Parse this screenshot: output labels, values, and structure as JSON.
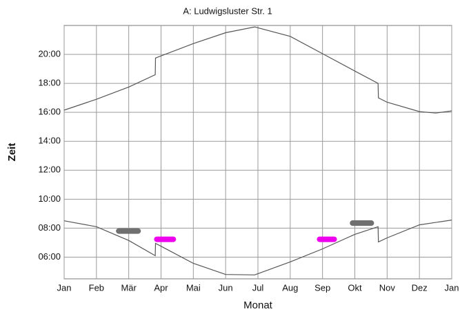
{
  "chart_data": {
    "type": "line",
    "title": "A: Ludwigsluster Str. 1",
    "xlabel": "Monat",
    "ylabel": "Zeit",
    "xlim": [
      0,
      12
    ],
    "xticks": [
      {
        "value": 0,
        "label": "Jan"
      },
      {
        "value": 1,
        "label": "Feb"
      },
      {
        "value": 2,
        "label": "Mär"
      },
      {
        "value": 3,
        "label": "Apr"
      },
      {
        "value": 4,
        "label": "Mai"
      },
      {
        "value": 5,
        "label": "Jun"
      },
      {
        "value": 6,
        "label": "Jul"
      },
      {
        "value": 7,
        "label": "Aug"
      },
      {
        "value": 8,
        "label": "Sep"
      },
      {
        "value": 9,
        "label": "Okt"
      },
      {
        "value": 10,
        "label": "Nov"
      },
      {
        "value": 11,
        "label": "Dez"
      },
      {
        "value": 12,
        "label": "Jan"
      }
    ],
    "ylim": [
      4.5,
      22
    ],
    "yticks": [
      {
        "value": 6,
        "label": "06:00"
      },
      {
        "value": 8,
        "label": "08:00"
      },
      {
        "value": 10,
        "label": "10:00"
      },
      {
        "value": 12,
        "label": "12:00"
      },
      {
        "value": 14,
        "label": "14:00"
      },
      {
        "value": 16,
        "label": "16:00"
      },
      {
        "value": 18,
        "label": "18:00"
      },
      {
        "value": 20,
        "label": "20:00"
      }
    ],
    "grid": true,
    "series": [
      {
        "color": "#555555",
        "x": [
          0,
          1,
          2,
          2.82,
          2.83,
          3,
          4,
          5,
          5.9,
          7,
          8,
          9,
          9.72,
          9.73,
          10,
          11,
          11.5,
          12
        ],
        "values": [
          16.15,
          16.9,
          17.75,
          18.6,
          19.75,
          19.9,
          20.75,
          21.5,
          21.9,
          21.25,
          20.05,
          18.85,
          18.0,
          17.0,
          16.7,
          16.05,
          15.95,
          16.1
        ]
      },
      {
        "color": "#555555",
        "x": [
          0,
          1,
          2,
          2.82,
          2.83,
          3,
          4,
          5,
          5.9,
          6,
          7,
          8,
          9,
          9.72,
          9.73,
          10,
          11,
          12
        ],
        "values": [
          8.51,
          8.1,
          7.15,
          6.1,
          6.95,
          6.75,
          5.57,
          4.8,
          4.77,
          4.85,
          5.67,
          6.57,
          7.57,
          8.1,
          7.05,
          7.33,
          8.23,
          8.56
        ]
      },
      {
        "color": "#707070",
        "x": [
          1.69,
          2.29
        ],
        "values": [
          7.8,
          7.8
        ]
      },
      {
        "color": "#ee00ee",
        "x": [
          2.87,
          3.38
        ],
        "values": [
          7.23,
          7.23
        ]
      },
      {
        "color": "#ee00ee",
        "x": [
          7.91,
          8.36
        ],
        "values": [
          7.23,
          7.23
        ]
      },
      {
        "color": "#707070",
        "x": [
          8.93,
          9.51
        ],
        "values": [
          8.35,
          8.35
        ]
      }
    ]
  }
}
